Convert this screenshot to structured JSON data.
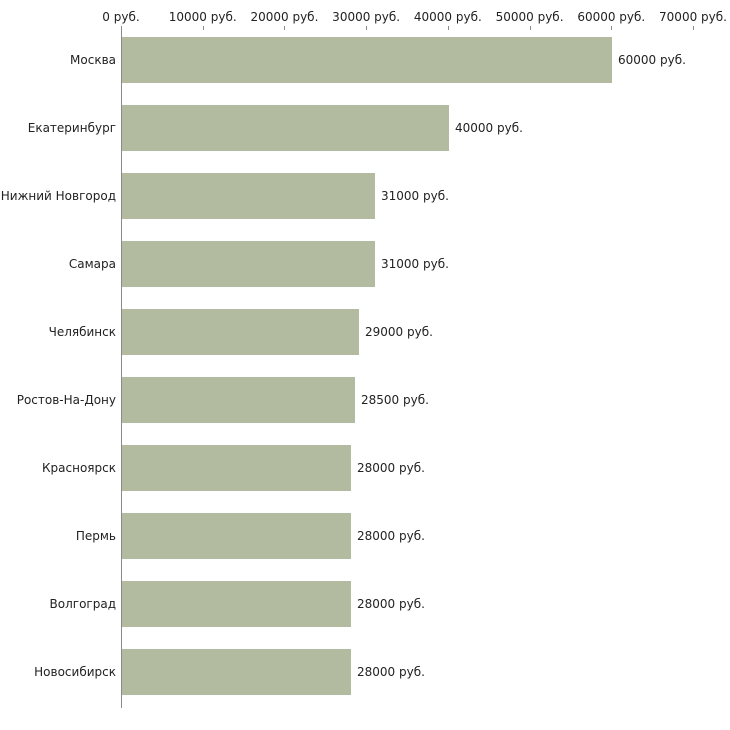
{
  "chart_data": {
    "type": "bar",
    "orientation": "horizontal",
    "title": "",
    "xlabel": "",
    "ylabel": "",
    "xlim": [
      0,
      70000
    ],
    "grid": false,
    "legend": false,
    "categories": [
      "Москва",
      "Екатеринбург",
      "Нижний Новгород",
      "Самара",
      "Челябинск",
      "Ростов-На-Дону",
      "Красноярск",
      "Пермь",
      "Волгоград",
      "Новосибирск"
    ],
    "values": [
      60000,
      40000,
      31000,
      31000,
      29000,
      28500,
      28000,
      28000,
      28000,
      28000
    ],
    "value_labels": [
      "60000 руб.",
      "40000 руб.",
      "31000 руб.",
      "31000 руб.",
      "29000 руб.",
      "28500 руб.",
      "28000 руб.",
      "28000 руб.",
      "28000 руб.",
      "28000 руб."
    ],
    "x_ticks": [
      {
        "value": 0,
        "label": "0 руб."
      },
      {
        "value": 10000,
        "label": "10000 руб."
      },
      {
        "value": 20000,
        "label": "20000 руб."
      },
      {
        "value": 30000,
        "label": "30000 руб."
      },
      {
        "value": 40000,
        "label": "40000 руб."
      },
      {
        "value": 50000,
        "label": "50000 руб."
      },
      {
        "value": 60000,
        "label": "60000 руб."
      },
      {
        "value": 70000,
        "label": "70000 руб."
      }
    ],
    "bar_color": "#b2ba9f",
    "axis_color": "#8a8a8a",
    "text_color": "#222222"
  }
}
